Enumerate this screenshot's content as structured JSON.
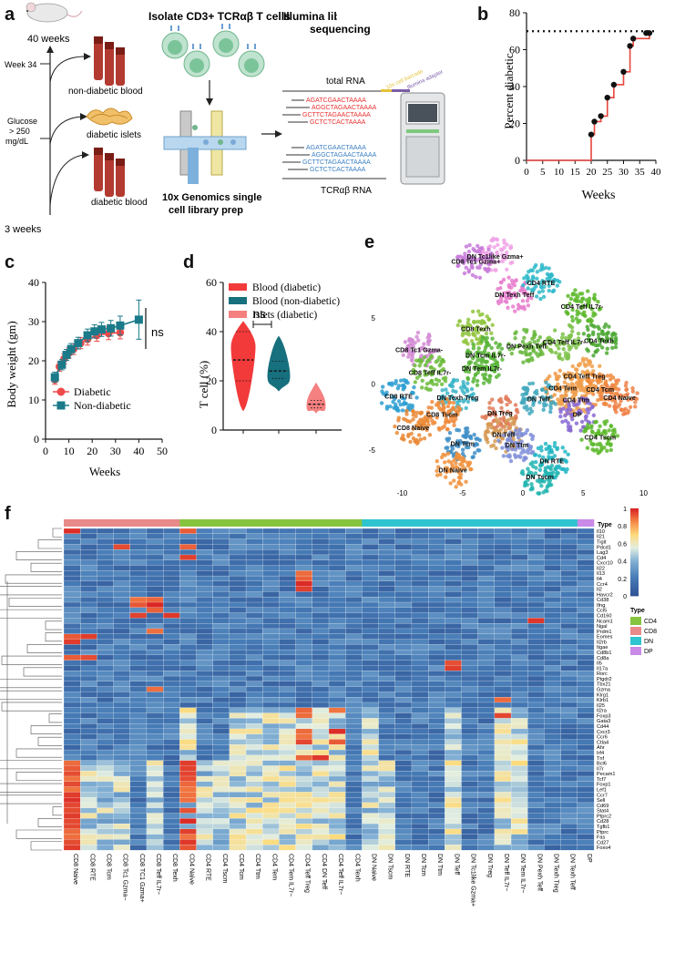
{
  "panels": {
    "a": "a",
    "b": "b",
    "c": "c",
    "d": "d",
    "e": "e",
    "f": "f"
  },
  "panel_a": {
    "title_isolate": "Isolate CD3+ TCRαβ T cells",
    "title_illumina_1": "Illumina library prep +",
    "title_illumina_2": "sequencing",
    "weeks40": "40 weeks",
    "week34": "Week 34",
    "glucose_1": "Glucose",
    "glucose_2": "> 250",
    "glucose_3": "mg/dL",
    "weeks3": "3 weeks",
    "nondiabetic_blood": "non-diabetic blood",
    "diabetic_islets": "diabetic islets",
    "diabetic_blood": "diabetic blood",
    "genomics_1": "10x Genomics single",
    "genomics_2": "cell library prep",
    "total_rna": "total RNA",
    "tcr_rna": "TCRαβ RNA",
    "cell_barcode": "10x cell barcode",
    "illumina_adapter": "Illumina adapter",
    "seqs": [
      "AGATCGAACTAAAA",
      "AGGCTAGAACTAAAA",
      "GCTTCTAGAACTAAAA",
      "GCTCTCACTAAAA"
    ],
    "colors": {
      "red": "#e8312f",
      "blue": "#3b7fc4",
      "yellow": "#e6c23a",
      "purple": "#7b5ea7"
    }
  },
  "panel_b_chart": {
    "type": "line",
    "title": "",
    "xlabel": "Weeks",
    "ylabel": "Percent diabetic",
    "xlim": [
      0,
      40
    ],
    "ylim": [
      0,
      80
    ],
    "xticks": [
      0,
      5,
      10,
      15,
      20,
      25,
      30,
      35,
      40
    ],
    "yticks": [
      0,
      20,
      40,
      60,
      80
    ],
    "step_x": [
      0,
      20,
      21,
      23,
      25,
      27,
      30,
      32,
      33,
      35,
      38
    ],
    "step_y": [
      0,
      14,
      21,
      24,
      34,
      41,
      48,
      62,
      66,
      66,
      69
    ],
    "point_x": [
      20,
      21,
      23,
      25,
      27,
      30,
      32,
      33,
      37,
      38
    ],
    "point_y": [
      14,
      21,
      24,
      34,
      41,
      48,
      62,
      66,
      69,
      69
    ],
    "reference_line_y": 70,
    "colors": {
      "step": "#e8453c",
      "point": "#111111",
      "ref": "#111111"
    }
  },
  "panel_c_chart": {
    "type": "line",
    "xlabel": "Weeks",
    "ylabel": "Body weight (gm)",
    "xlim": [
      0,
      50
    ],
    "ylim": [
      0,
      40
    ],
    "xticks": [
      0,
      10,
      20,
      30,
      40,
      50
    ],
    "yticks": [
      0,
      10,
      20,
      30,
      40
    ],
    "significance": "ns",
    "series": [
      {
        "name": "Diabetic",
        "color": "#ef4a4a",
        "marker": "circle",
        "x": [
          4,
          6,
          8,
          10,
          12,
          15,
          18,
          22,
          27,
          32
        ],
        "y": [
          15.2,
          18.5,
          20.5,
          22,
          23,
          24.5,
          25.5,
          26.5,
          27,
          27.2
        ],
        "err": [
          1.2,
          1.2,
          1.3,
          1.3,
          1.4,
          1.4,
          1.5,
          1.5,
          1.6,
          1.6
        ]
      },
      {
        "name": "Non-diabetic",
        "color": "#1a7a8a",
        "marker": "square",
        "x": [
          4,
          7,
          9,
          11,
          14,
          18,
          21,
          24,
          28,
          32,
          40
        ],
        "y": [
          15.8,
          19,
          21.5,
          23,
          24.5,
          26.5,
          27.5,
          28,
          28.3,
          29,
          30.5
        ],
        "err": [
          1.3,
          1.3,
          1.4,
          1.4,
          1.5,
          1.6,
          1.7,
          1.8,
          2,
          2.4,
          5
        ]
      }
    ]
  },
  "panel_d_chart": {
    "type": "violin",
    "ylabel": "T cell (%)",
    "ylim": [
      0,
      60
    ],
    "yticks": [
      0,
      20,
      40,
      60
    ],
    "significance": "ns",
    "series": [
      {
        "name": "Blood (diabetic)",
        "color": "#f23a3a",
        "min": 8,
        "max": 44,
        "median": 28.5,
        "q1": 20,
        "q3": 40,
        "peak": 34
      },
      {
        "name": "Blood (non-diabetic)",
        "color": "#17707e",
        "min": 16,
        "max": 38,
        "median": 24,
        "q1": 21,
        "q3": 28,
        "peak": 22
      },
      {
        "name": "Islets (diabetic)",
        "color": "#f58080",
        "min": 7,
        "max": 19,
        "median": 10.5,
        "q1": 9,
        "q3": 12,
        "peak": 10
      }
    ]
  },
  "panel_e_chart": {
    "type": "scatter",
    "xlim": [
      -12,
      12
    ],
    "ylim": [
      -7.5,
      11
    ],
    "xticks": [
      -10,
      -5,
      0,
      5,
      10
    ],
    "yticks": [
      -5,
      0,
      5
    ],
    "clusters": [
      {
        "label": "DN Tc1like Gzma+",
        "x": -2.3,
        "y": 9.7,
        "color": "#f0a3e6"
      },
      {
        "label": "CD8 Tc1 Gzma+",
        "x": -3.9,
        "y": 9.3,
        "color": "#c77ad9"
      },
      {
        "label": "DN Texh Teff",
        "x": -0.7,
        "y": 6.8,
        "color": "#e77cce"
      },
      {
        "label": "CD4 RTE",
        "x": 1.5,
        "y": 7.7,
        "color": "#2fb8c9"
      },
      {
        "label": "CD4 Teff IL7r-",
        "x": 4.9,
        "y": 5.9,
        "color": "#5cb82a"
      },
      {
        "label": "CD8 Texh",
        "x": -3.9,
        "y": 4.2,
        "color": "#8fc43d"
      },
      {
        "label": "DN Tcm IL7r-",
        "x": -3.1,
        "y": 2.2,
        "color": "#59b53a"
      },
      {
        "label": "DN Pexh Teff",
        "x": 0.3,
        "y": 2.9,
        "color": "#6ab93f"
      },
      {
        "label": "CD4 Teff IL7r-",
        "x": 3.4,
        "y": 3.2,
        "color": "#7dc248"
      },
      {
        "label": "CD4 Texh",
        "x": 6.3,
        "y": 3.3,
        "color": "#4da935"
      },
      {
        "label": "CD8 Tc1 Gzma-",
        "x": -8.6,
        "y": 2.6,
        "color": "#d38cd3"
      },
      {
        "label": "DN Tem IL7r-",
        "x": -3.4,
        "y": 1.2,
        "color": "#59b53a"
      },
      {
        "label": "CD8 Teff IL7r-",
        "x": -7.7,
        "y": 0.9,
        "color": "#6cbc3b"
      },
      {
        "label": "CD4 Teff Treg",
        "x": 5.1,
        "y": 0.6,
        "color": "#f1a04a"
      },
      {
        "label": "CD4 Tcm",
        "x": 6.4,
        "y": -0.4,
        "color": "#f08a3a"
      },
      {
        "label": "CD4 Naive",
        "x": 8,
        "y": -1,
        "color": "#f0824a"
      },
      {
        "label": "CD4 Tem",
        "x": 3.3,
        "y": -0.3,
        "color": "#ee9a46"
      },
      {
        "label": "CD4 Ttm",
        "x": 4.4,
        "y": -1.2,
        "color": "#f0a253"
      },
      {
        "label": "DN Teff",
        "x": 1.3,
        "y": -1.1,
        "color": "#42a8bd"
      },
      {
        "label": "DP",
        "x": 4.5,
        "y": -2.3,
        "color": "#8a6ad3"
      },
      {
        "label": "CD4 Tscm",
        "x": 6.4,
        "y": -4,
        "color": "#5cb82a"
      },
      {
        "label": "CD8 RTE",
        "x": -10.3,
        "y": -0.9,
        "color": "#2e9fd2"
      },
      {
        "label": "DN Texh Treg",
        "x": -5.4,
        "y": -1,
        "color": "#3cb4c8"
      },
      {
        "label": "CD8 Tscm",
        "x": -6.7,
        "y": -2.3,
        "color": "#f08a3a"
      },
      {
        "label": "DN Treg",
        "x": -1.9,
        "y": -2.2,
        "color": "#e07c5a"
      },
      {
        "label": "CD8 Naive",
        "x": -9.1,
        "y": -3.3,
        "color": "#ea8a36"
      },
      {
        "label": "DN Teff",
        "x": -1.6,
        "y": -3.8,
        "color": "#d69a52"
      },
      {
        "label": "DN Tcm",
        "x": -5,
        "y": -4.5,
        "color": "#3e8ec7"
      },
      {
        "label": "DN Ttm",
        "x": -0.5,
        "y": -4.6,
        "color": "#7f8ed8"
      },
      {
        "label": "DN RTE",
        "x": 2.4,
        "y": -5.8,
        "color": "#23b6c4"
      },
      {
        "label": "DN Naive",
        "x": -5.8,
        "y": -6.5,
        "color": "#f0903c"
      },
      {
        "label": "DN Tscm",
        "x": 1.4,
        "y": -7,
        "color": "#25b5b0"
      }
    ]
  },
  "panel_f_chart": {
    "type": "heatmap",
    "legend_type_title": "Type",
    "column_type_label": "Type",
    "colorbar_ticks": [
      "1",
      "0.8",
      "0.6",
      "0.4",
      "0.2",
      "0"
    ],
    "types": [
      {
        "name": "CD4",
        "color": "#86c440"
      },
      {
        "name": "CD8",
        "color": "#e88a8a"
      },
      {
        "name": "DN",
        "color": "#2ec4d0"
      },
      {
        "name": "DP",
        "color": "#c98ae8"
      }
    ],
    "columns": [
      "CD8 Naive",
      "CD8 RTE",
      "CD8 Tcm",
      "CD8 Tc1 Gzma−",
      "CD8 TC1 Gzma+",
      "CD8 Teff IL7r−",
      "CD8 Texh",
      "CD4 Naive",
      "CD4 RTE",
      "CD4 Tscm",
      "CD4 Tcm",
      "CD4 Ttm",
      "CD4 Tem",
      "CD4 Tem IL7r−",
      "CD4 Teff Treg",
      "CD4 DN Teff",
      "CD4 Teff IL7r−",
      "CD4 Texh",
      "DN Naive",
      "DN Tscm",
      "DN RTE",
      "DN Tcm",
      "DN Ttm",
      "DN Teff",
      "DN Tc1like Gzma+",
      "DN Treg",
      "DN Teff IL7r−",
      "DN Tem IL7r−",
      "DN Pexh Teff",
      "DN Texh Treg",
      "DN Texh Teff",
      "DP"
    ],
    "column_types": [
      "CD8",
      "CD8",
      "CD8",
      "CD8",
      "CD8",
      "CD8",
      "CD8",
      "CD4",
      "CD4",
      "CD4",
      "CD4",
      "CD4",
      "CD4",
      "CD4",
      "CD4",
      "CD4",
      "CD4",
      "CD4",
      "DN",
      "DN",
      "DN",
      "DN",
      "DN",
      "DN",
      "DN",
      "DN",
      "DN",
      "DN",
      "DN",
      "DN",
      "DN",
      "DP"
    ],
    "rows": [
      "Il10",
      "Il21",
      "Tigit",
      "Pdcd1",
      "Lag3",
      "Cd4",
      "Cxcr10",
      "Il22",
      "Il13",
      "Il4",
      "Ccr4",
      "Il2",
      "Havcr2",
      "Cd38",
      "Ifng",
      "Ccl5",
      "Cd160",
      "Ncam1",
      "Ngal",
      "Prdm1",
      "Eomes",
      "Il2rb",
      "Itgae",
      "Cd8b1",
      "Cd8a",
      "Il5",
      "Il17a",
      "Rorc",
      "Ptgdr2",
      "Tbx21",
      "Gzma",
      "Klrg1",
      "Klrb1",
      "Il25",
      "Il2ra",
      "Foxp3",
      "Gata3",
      "Cd44",
      "Cxcr3",
      "Ccr6",
      "Ctla4",
      "Ahr",
      "Irf4",
      "Tnf",
      "Bcl6",
      "Il7r",
      "Pecam1",
      "Tcf7",
      "Foxp1",
      "Lef1",
      "Ccr7",
      "Sell",
      "Cd69",
      "Stat4",
      "Ptprc2",
      "Cd28",
      "Tgfb1",
      "Ptprc",
      "Fas",
      "Cd27",
      "Foxo4"
    ]
  }
}
